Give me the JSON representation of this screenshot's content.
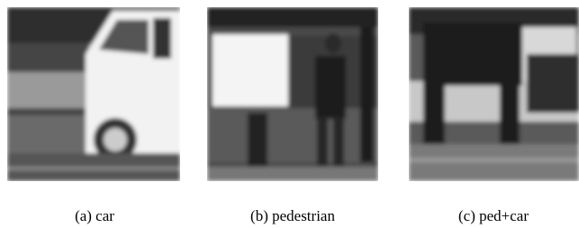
{
  "figure": {
    "panels": [
      {
        "caption": "(a) car"
      },
      {
        "caption": "(b) pedestrian"
      },
      {
        "caption": "(c) ped+car"
      }
    ]
  }
}
